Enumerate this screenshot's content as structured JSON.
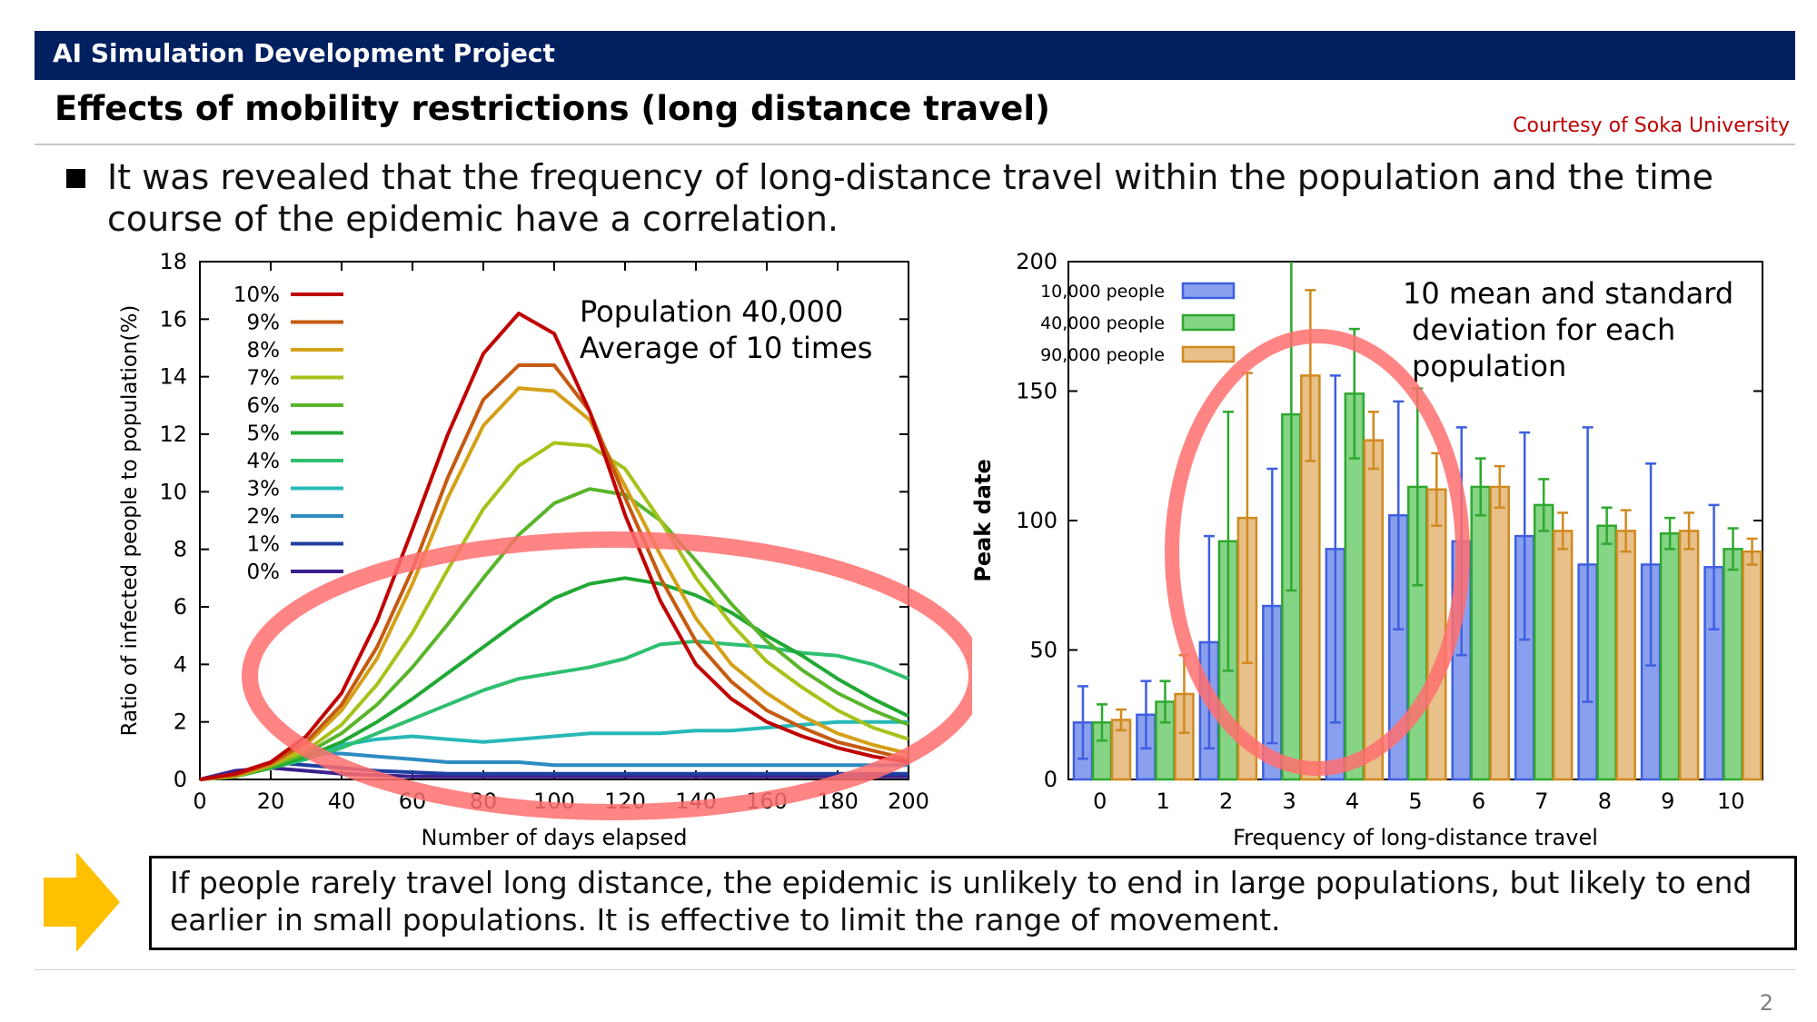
{
  "header": {
    "title": "AI Simulation Development Project"
  },
  "slide": {
    "title": "Effects of mobility restrictions (long distance travel)",
    "courtesy": "Courtesy of Soka University",
    "bullet": "It was revealed that the frequency of long-distance travel within the population and the time course of the epidemic have a correlation.",
    "conclusion": "If people rarely travel long distance, the epidemic is unlikely to end in large populations, but likely to end earlier in small populations.  It is effective to limit the range of movement.",
    "page_number": "2"
  },
  "colors": {
    "header_bg": "#002060",
    "courtesy": "#c00000",
    "arrow": "#ffc000",
    "highlight_ellipse": "#ff6f6f"
  },
  "chart_data": [
    {
      "type": "line",
      "title": "",
      "xlabel": "Number of days elapsed",
      "ylabel": "Ratio of infected people to population(%)",
      "xlim": [
        0,
        200
      ],
      "ylim": [
        0,
        18
      ],
      "xticks": [
        0,
        20,
        40,
        60,
        80,
        100,
        120,
        140,
        160,
        180,
        200
      ],
      "yticks": [
        0,
        2,
        4,
        6,
        8,
        10,
        12,
        14,
        16,
        18
      ],
      "legend_position": "top-left",
      "annotation": [
        "Population 40,000",
        "Average of 10 times"
      ],
      "series": [
        {
          "name": "10%",
          "color": "#c00000",
          "points": [
            [
              0,
              0
            ],
            [
              10,
              0.2
            ],
            [
              20,
              0.6
            ],
            [
              30,
              1.5
            ],
            [
              40,
              3
            ],
            [
              50,
              5.5
            ],
            [
              60,
              8.7
            ],
            [
              70,
              12
            ],
            [
              80,
              14.8
            ],
            [
              90,
              16.2
            ],
            [
              100,
              15.5
            ],
            [
              110,
              12.8
            ],
            [
              120,
              9.2
            ],
            [
              130,
              6.2
            ],
            [
              140,
              4
            ],
            [
              150,
              2.8
            ],
            [
              160,
              2
            ],
            [
              170,
              1.5
            ],
            [
              180,
              1.1
            ],
            [
              190,
              0.8
            ],
            [
              200,
              0.6
            ]
          ]
        },
        {
          "name": "9%",
          "color": "#c55a11",
          "points": [
            [
              0,
              0
            ],
            [
              10,
              0.15
            ],
            [
              20,
              0.55
            ],
            [
              30,
              1.3
            ],
            [
              40,
              2.6
            ],
            [
              50,
              4.6
            ],
            [
              60,
              7.3
            ],
            [
              70,
              10.5
            ],
            [
              80,
              13.2
            ],
            [
              90,
              14.4
            ],
            [
              100,
              14.4
            ],
            [
              110,
              12.8
            ],
            [
              120,
              9.8
            ],
            [
              130,
              7
            ],
            [
              140,
              4.8
            ],
            [
              150,
              3.4
            ],
            [
              160,
              2.4
            ],
            [
              170,
              1.8
            ],
            [
              180,
              1.3
            ],
            [
              190,
              1
            ],
            [
              200,
              0.7
            ]
          ]
        },
        {
          "name": "8%",
          "color": "#d4a017",
          "points": [
            [
              0,
              0
            ],
            [
              10,
              0.15
            ],
            [
              20,
              0.5
            ],
            [
              30,
              1.2
            ],
            [
              40,
              2.4
            ],
            [
              50,
              4.2
            ],
            [
              60,
              6.8
            ],
            [
              70,
              9.8
            ],
            [
              80,
              12.3
            ],
            [
              90,
              13.6
            ],
            [
              100,
              13.5
            ],
            [
              110,
              12.5
            ],
            [
              120,
              10.2
            ],
            [
              130,
              7.8
            ],
            [
              140,
              5.6
            ],
            [
              150,
              4
            ],
            [
              160,
              3
            ],
            [
              170,
              2.2
            ],
            [
              180,
              1.6
            ],
            [
              190,
              1.2
            ],
            [
              200,
              0.9
            ]
          ]
        },
        {
          "name": "7%",
          "color": "#a6c21a",
          "points": [
            [
              0,
              0
            ],
            [
              10,
              0.1
            ],
            [
              20,
              0.5
            ],
            [
              30,
              1
            ],
            [
              40,
              1.9
            ],
            [
              50,
              3.3
            ],
            [
              60,
              5.1
            ],
            [
              70,
              7.3
            ],
            [
              80,
              9.4
            ],
            [
              90,
              10.9
            ],
            [
              100,
              11.7
            ],
            [
              110,
              11.6
            ],
            [
              120,
              10.8
            ],
            [
              130,
              9
            ],
            [
              140,
              7
            ],
            [
              150,
              5.4
            ],
            [
              160,
              4.1
            ],
            [
              170,
              3.2
            ],
            [
              180,
              2.4
            ],
            [
              190,
              1.8
            ],
            [
              200,
              1.4
            ]
          ]
        },
        {
          "name": "6%",
          "color": "#5ab52a",
          "points": [
            [
              0,
              0
            ],
            [
              10,
              0.1
            ],
            [
              20,
              0.45
            ],
            [
              30,
              0.9
            ],
            [
              40,
              1.6
            ],
            [
              50,
              2.6
            ],
            [
              60,
              3.9
            ],
            [
              70,
              5.4
            ],
            [
              80,
              7
            ],
            [
              90,
              8.5
            ],
            [
              100,
              9.6
            ],
            [
              110,
              10.1
            ],
            [
              120,
              9.9
            ],
            [
              130,
              9
            ],
            [
              140,
              7.6
            ],
            [
              150,
              6.1
            ],
            [
              160,
              4.8
            ],
            [
              170,
              3.8
            ],
            [
              180,
              3
            ],
            [
              190,
              2.4
            ],
            [
              200,
              1.9
            ]
          ]
        },
        {
          "name": "5%",
          "color": "#21a834",
          "points": [
            [
              0,
              0
            ],
            [
              10,
              0.1
            ],
            [
              20,
              0.4
            ],
            [
              30,
              0.8
            ],
            [
              40,
              1.3
            ],
            [
              50,
              2
            ],
            [
              60,
              2.8
            ],
            [
              70,
              3.7
            ],
            [
              80,
              4.6
            ],
            [
              90,
              5.5
            ],
            [
              100,
              6.3
            ],
            [
              110,
              6.8
            ],
            [
              120,
              7
            ],
            [
              130,
              6.8
            ],
            [
              140,
              6.4
            ],
            [
              150,
              5.8
            ],
            [
              160,
              5
            ],
            [
              170,
              4.3
            ],
            [
              180,
              3.5
            ],
            [
              190,
              2.8
            ],
            [
              200,
              2.2
            ]
          ]
        },
        {
          "name": "4%",
          "color": "#2fbf6f",
          "points": [
            [
              0,
              0
            ],
            [
              10,
              0.1
            ],
            [
              20,
              0.4
            ],
            [
              30,
              0.7
            ],
            [
              40,
              1.1
            ],
            [
              50,
              1.6
            ],
            [
              60,
              2.1
            ],
            [
              70,
              2.6
            ],
            [
              80,
              3.1
            ],
            [
              90,
              3.5
            ],
            [
              100,
              3.7
            ],
            [
              110,
              3.9
            ],
            [
              120,
              4.2
            ],
            [
              130,
              4.7
            ],
            [
              140,
              4.8
            ],
            [
              150,
              4.7
            ],
            [
              160,
              4.6
            ],
            [
              170,
              4.4
            ],
            [
              180,
              4.3
            ],
            [
              190,
              4
            ],
            [
              200,
              3.5
            ]
          ]
        },
        {
          "name": "3%",
          "color": "#28b8b8",
          "points": [
            [
              0,
              0
            ],
            [
              10,
              0.1
            ],
            [
              20,
              0.5
            ],
            [
              30,
              0.9
            ],
            [
              40,
              1.2
            ],
            [
              50,
              1.4
            ],
            [
              60,
              1.5
            ],
            [
              70,
              1.4
            ],
            [
              80,
              1.3
            ],
            [
              90,
              1.4
            ],
            [
              100,
              1.5
            ],
            [
              110,
              1.6
            ],
            [
              120,
              1.6
            ],
            [
              130,
              1.6
            ],
            [
              140,
              1.7
            ],
            [
              150,
              1.7
            ],
            [
              160,
              1.8
            ],
            [
              170,
              1.9
            ],
            [
              180,
              2
            ],
            [
              190,
              2
            ],
            [
              200,
              2
            ]
          ]
        },
        {
          "name": "2%",
          "color": "#2e8bc0",
          "points": [
            [
              0,
              0
            ],
            [
              10,
              0.2
            ],
            [
              20,
              0.6
            ],
            [
              30,
              0.9
            ],
            [
              40,
              0.9
            ],
            [
              50,
              0.8
            ],
            [
              60,
              0.7
            ],
            [
              70,
              0.6
            ],
            [
              80,
              0.6
            ],
            [
              90,
              0.6
            ],
            [
              100,
              0.5
            ],
            [
              110,
              0.5
            ],
            [
              120,
              0.5
            ],
            [
              130,
              0.5
            ],
            [
              140,
              0.5
            ],
            [
              150,
              0.5
            ],
            [
              160,
              0.5
            ],
            [
              170,
              0.5
            ],
            [
              180,
              0.5
            ],
            [
              190,
              0.5
            ],
            [
              200,
              0.5
            ]
          ]
        },
        {
          "name": "1%",
          "color": "#1f3fa0",
          "points": [
            [
              0,
              0
            ],
            [
              10,
              0.2
            ],
            [
              20,
              0.6
            ],
            [
              30,
              0.5
            ],
            [
              40,
              0.4
            ],
            [
              50,
              0.3
            ],
            [
              60,
              0.25
            ],
            [
              70,
              0.2
            ],
            [
              80,
              0.2
            ],
            [
              90,
              0.2
            ],
            [
              100,
              0.2
            ],
            [
              110,
              0.2
            ],
            [
              120,
              0.2
            ],
            [
              130,
              0.2
            ],
            [
              140,
              0.2
            ],
            [
              150,
              0.2
            ],
            [
              160,
              0.2
            ],
            [
              170,
              0.2
            ],
            [
              180,
              0.2
            ],
            [
              190,
              0.2
            ],
            [
              200,
              0.2
            ]
          ]
        },
        {
          "name": "0%",
          "color": "#3b1f8c",
          "points": [
            [
              0,
              0
            ],
            [
              10,
              0.3
            ],
            [
              20,
              0.4
            ],
            [
              30,
              0.3
            ],
            [
              40,
              0.2
            ],
            [
              50,
              0.15
            ],
            [
              60,
              0.1
            ],
            [
              70,
              0.1
            ],
            [
              80,
              0.1
            ],
            [
              90,
              0.1
            ],
            [
              100,
              0.1
            ],
            [
              110,
              0.1
            ],
            [
              120,
              0.1
            ],
            [
              130,
              0.1
            ],
            [
              140,
              0.1
            ],
            [
              150,
              0.1
            ],
            [
              160,
              0.1
            ],
            [
              170,
              0.1
            ],
            [
              180,
              0.1
            ],
            [
              190,
              0.1
            ],
            [
              200,
              0.1
            ]
          ]
        }
      ]
    },
    {
      "type": "bar",
      "title": "",
      "xlabel": "Frequency of long-distance travel",
      "ylabel": "Peak date",
      "ylim": [
        0,
        200
      ],
      "yticks": [
        0,
        50,
        100,
        150,
        200
      ],
      "categories": [
        "0",
        "1",
        "2",
        "3",
        "4",
        "5",
        "6",
        "7",
        "8",
        "9",
        "10"
      ],
      "legend_position": "top-left",
      "annotation": [
        "10 mean and standard",
        "deviation for each",
        "population"
      ],
      "series": [
        {
          "name": "10,000 people",
          "color": "#3f5fe0",
          "fill": "#8aa0ee",
          "values": [
            22,
            25,
            53,
            67,
            89,
            102,
            92,
            94,
            83,
            83,
            82
          ],
          "errors": [
            14,
            13,
            41,
            53,
            67,
            44,
            44,
            40,
            53,
            39,
            24
          ]
        },
        {
          "name": "40,000 people",
          "color": "#2ea82e",
          "fill": "#86d486",
          "values": [
            22,
            30,
            92,
            141,
            149,
            113,
            113,
            106,
            98,
            95,
            89
          ],
          "errors": [
            7,
            8,
            50,
            68,
            25,
            38,
            11,
            10,
            7,
            6,
            8
          ]
        },
        {
          "name": "90,000 people",
          "color": "#d08a1e",
          "fill": "#e7c08a",
          "values": [
            23,
            33,
            101,
            156,
            131,
            112,
            113,
            96,
            96,
            96,
            88
          ],
          "errors": [
            4,
            15,
            56,
            33,
            11,
            14,
            8,
            7,
            8,
            7,
            5
          ]
        }
      ]
    }
  ]
}
